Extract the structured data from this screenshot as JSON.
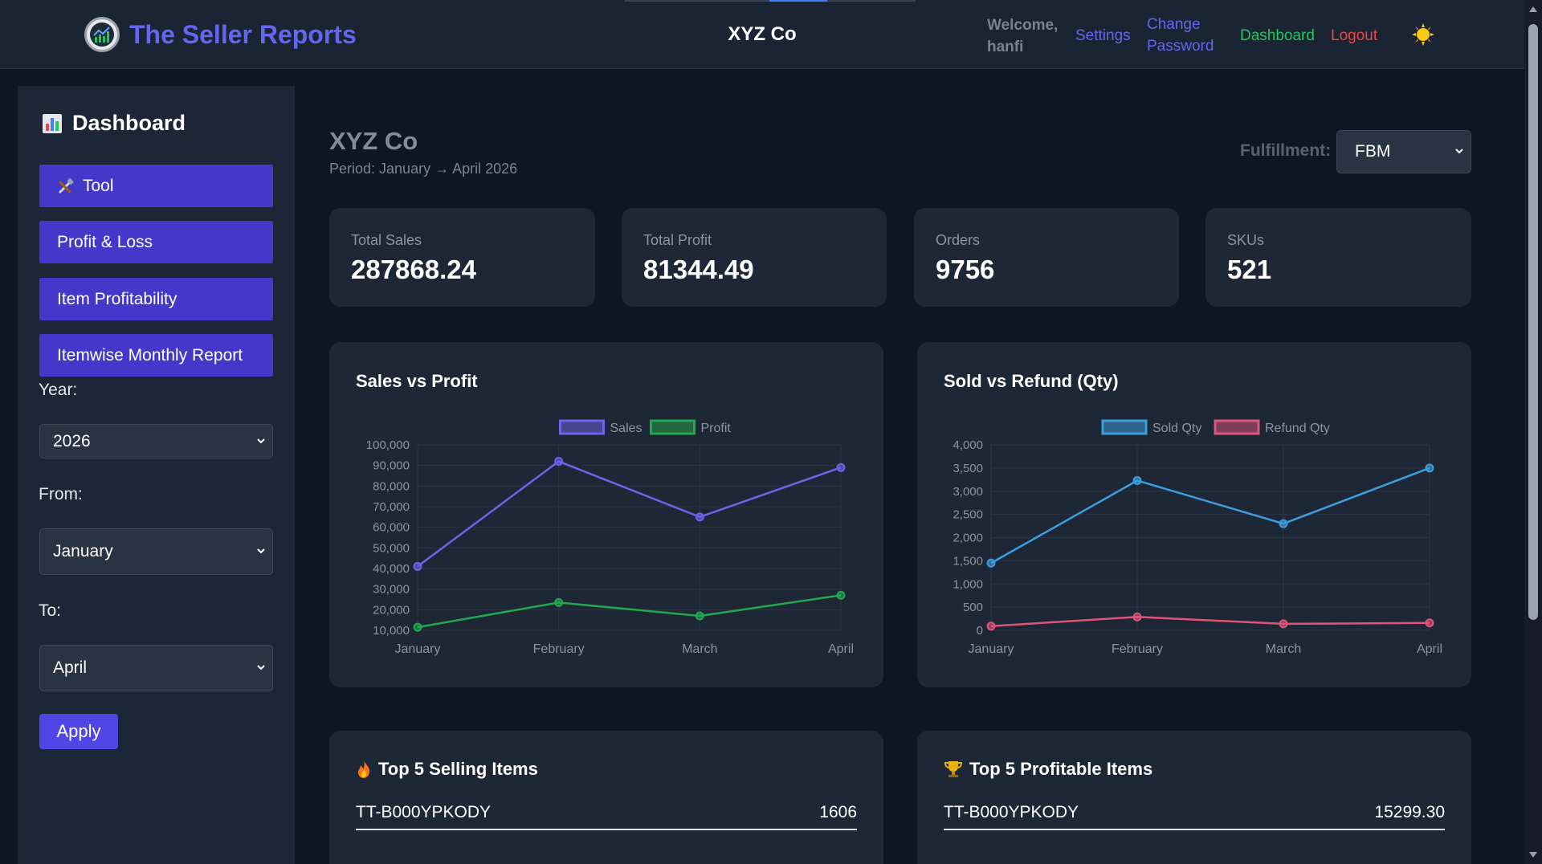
{
  "header": {
    "brand_title": "The Seller Reports",
    "company": "XYZ Co",
    "welcome": "Welcome, hanfi",
    "nav": {
      "settings": "Settings",
      "change_password": "Change Password",
      "dashboard": "Dashboard",
      "logout": "Logout"
    },
    "theme_icon": "sun-icon"
  },
  "sidebar": {
    "title": "Dashboard",
    "menu": [
      {
        "label": "Tool",
        "icon": "tools-icon"
      },
      {
        "label": "Profit & Loss"
      },
      {
        "label": "Item Profitability"
      },
      {
        "label": "Itemwise Monthly Report"
      }
    ],
    "filters": {
      "year_label": "Year:",
      "year_value": "2026",
      "from_label": "From:",
      "from_value": "January",
      "to_label": "To:",
      "to_value": "April",
      "apply_label": "Apply"
    }
  },
  "main": {
    "title": "XYZ Co",
    "period": "Period: January → April 2026",
    "fulfillment_label": "Fulfillment:",
    "fulfillment_value": "FBM",
    "stats": [
      {
        "label": "Total Sales",
        "value": "287868.24"
      },
      {
        "label": "Total Profit",
        "value": "81344.49"
      },
      {
        "label": "Orders",
        "value": "9756"
      },
      {
        "label": "SKUs",
        "value": "521"
      }
    ],
    "top_selling": {
      "title": "Top 5 Selling Items",
      "rows": [
        {
          "name": "TT-B000YPKODY",
          "value": "1606"
        }
      ]
    },
    "top_profitable": {
      "title": "Top 5 Profitable Items",
      "rows": [
        {
          "name": "TT-B000YPKODY",
          "value": "15299.30"
        }
      ]
    }
  },
  "colors": {
    "sales": "#6c63e6",
    "profit": "#22a84d",
    "sold": "#3b9fe0",
    "refund": "#e0557a"
  },
  "chart_data": [
    {
      "type": "line",
      "title": "Sales vs Profit",
      "categories": [
        "January",
        "February",
        "March",
        "April"
      ],
      "series": [
        {
          "name": "Sales",
          "values": [
            41000,
            92000,
            65000,
            89000
          ]
        },
        {
          "name": "Profit",
          "values": [
            11500,
            23500,
            17000,
            27000
          ]
        }
      ],
      "ylim": [
        10000,
        100000
      ],
      "yticks": [
        "100,000",
        "90,000",
        "80,000",
        "70,000",
        "60,000",
        "50,000",
        "40,000",
        "30,000",
        "20,000",
        "10,000"
      ],
      "legend": "top-center",
      "grid": true
    },
    {
      "type": "line",
      "title": "Sold vs Refund (Qty)",
      "categories": [
        "January",
        "February",
        "March",
        "April"
      ],
      "series": [
        {
          "name": "Sold Qty",
          "values": [
            1450,
            3230,
            2300,
            3500
          ]
        },
        {
          "name": "Refund Qty",
          "values": [
            90,
            290,
            140,
            160
          ]
        }
      ],
      "ylim": [
        0,
        4000
      ],
      "yticks": [
        "4,000",
        "3,500",
        "3,000",
        "2,500",
        "2,000",
        "1,500",
        "1,000",
        "500",
        "0"
      ],
      "legend": "top-center",
      "grid": true
    }
  ]
}
